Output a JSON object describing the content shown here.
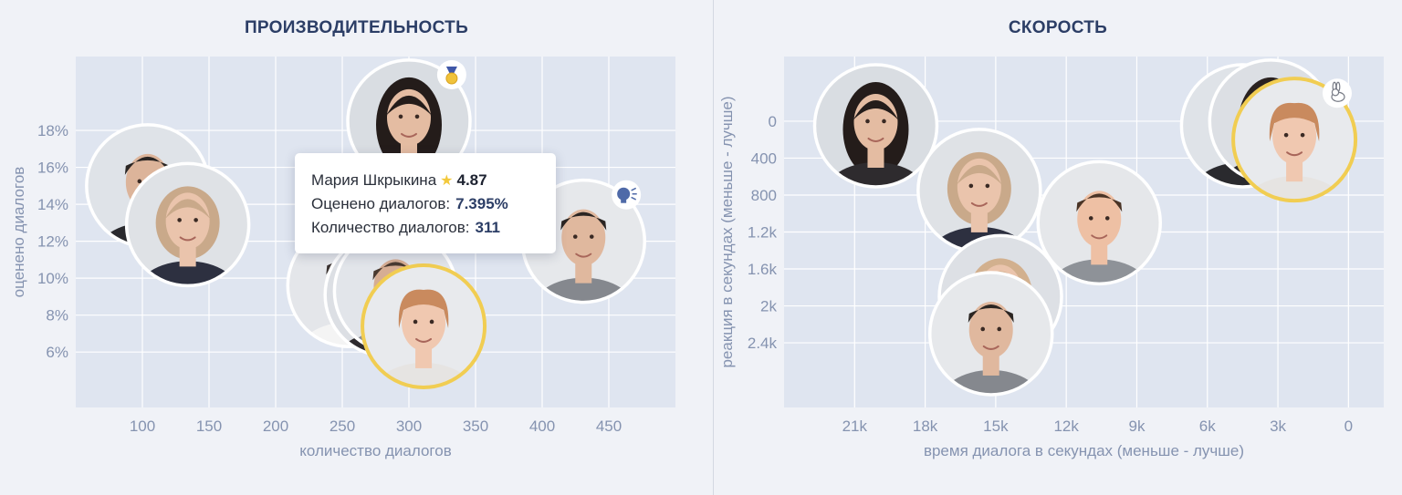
{
  "chart_data": [
    {
      "type": "scatter",
      "title": "ПРОИЗВОДИТЕЛЬНОСТЬ",
      "xlabel": "количество диалогов",
      "ylabel": "оценено диалогов",
      "xlim": [
        50,
        500
      ],
      "ylim": [
        3,
        22
      ],
      "x_ticks": [
        100,
        150,
        200,
        250,
        300,
        350,
        400,
        450
      ],
      "x_tick_labels": [
        "100",
        "150",
        "200",
        "250",
        "300",
        "350",
        "400",
        "450"
      ],
      "y_ticks": [
        6,
        8,
        10,
        12,
        14,
        16,
        18
      ],
      "y_tick_labels": [
        "6%",
        "8%",
        "10%",
        "12%",
        "14%",
        "16%",
        "18%"
      ],
      "grid": true,
      "points": [
        {
          "x": 104,
          "y": 15.0,
          "avatar": "male-dark-hair",
          "highlight": false
        },
        {
          "x": 134,
          "y": 12.9,
          "avatar": "female-blonde-bob",
          "highlight": false
        },
        {
          "x": 300,
          "y": 18.5,
          "avatar": "female-long-dark-hair",
          "highlight": false,
          "badge": "medal-icon"
        },
        {
          "x": 255,
          "y": 9.6,
          "avatar": "male-white-shirt",
          "highlight": false
        },
        {
          "x": 283,
          "y": 9.1,
          "avatar": "female-hidden",
          "highlight": false
        },
        {
          "x": 290,
          "y": 9.3,
          "avatar": "male-hidden",
          "highlight": false
        },
        {
          "x": 311,
          "y": 7.395,
          "avatar": "female-short-red-hair",
          "highlight": true
        },
        {
          "x": 431,
          "y": 12.0,
          "avatar": "male-short-hair",
          "highlight": false,
          "badge": "speech-icon"
        }
      ],
      "tooltip": {
        "name": "Мария Шкрыкина",
        "rating": "4.87",
        "rated_label": "Оценено диалогов:",
        "rated_value": "7.395%",
        "count_label": "Количество диалогов:",
        "count_value": "311"
      }
    },
    {
      "type": "scatter",
      "title": "СКОРОСТЬ",
      "xlabel": "время диалога в секундах (меньше - лучше)",
      "ylabel": "реакция в секундах (меньше - лучше)",
      "xlim": [
        24000,
        -1500
      ],
      "ylim": [
        3100,
        -700
      ],
      "x_ticks": [
        21000,
        18000,
        15000,
        12000,
        9000,
        6000,
        3000,
        0
      ],
      "x_tick_labels": [
        "21k",
        "18k",
        "15k",
        "12k",
        "9k",
        "6k",
        "3k",
        "0"
      ],
      "y_ticks": [
        0,
        400,
        800,
        1200,
        1600,
        2000,
        2400
      ],
      "y_tick_labels": [
        "0",
        "400",
        "800",
        "1.2k",
        "1.6k",
        "2k",
        "2.4k"
      ],
      "grid": true,
      "points": [
        {
          "x": 20100,
          "y": 50,
          "avatar": "female-long-dark-hair",
          "highlight": false
        },
        {
          "x": 4500,
          "y": 50,
          "avatar": "male-dark-hair",
          "highlight": false
        },
        {
          "x": 3300,
          "y": 0,
          "avatar": "female-hidden",
          "highlight": false
        },
        {
          "x": 2300,
          "y": 200,
          "avatar": "female-short-red-hair",
          "highlight": true,
          "badge": "rabbit-icon"
        },
        {
          "x": 15700,
          "y": 750,
          "avatar": "female-blonde-bob",
          "highlight": false
        },
        {
          "x": 10600,
          "y": 1100,
          "avatar": "male-ginger-short-hair",
          "highlight": false
        },
        {
          "x": 14800,
          "y": 1900,
          "avatar": "female-blonde-hidden",
          "highlight": false
        },
        {
          "x": 15200,
          "y": 2300,
          "avatar": "male-short-hair",
          "highlight": false
        }
      ]
    }
  ]
}
